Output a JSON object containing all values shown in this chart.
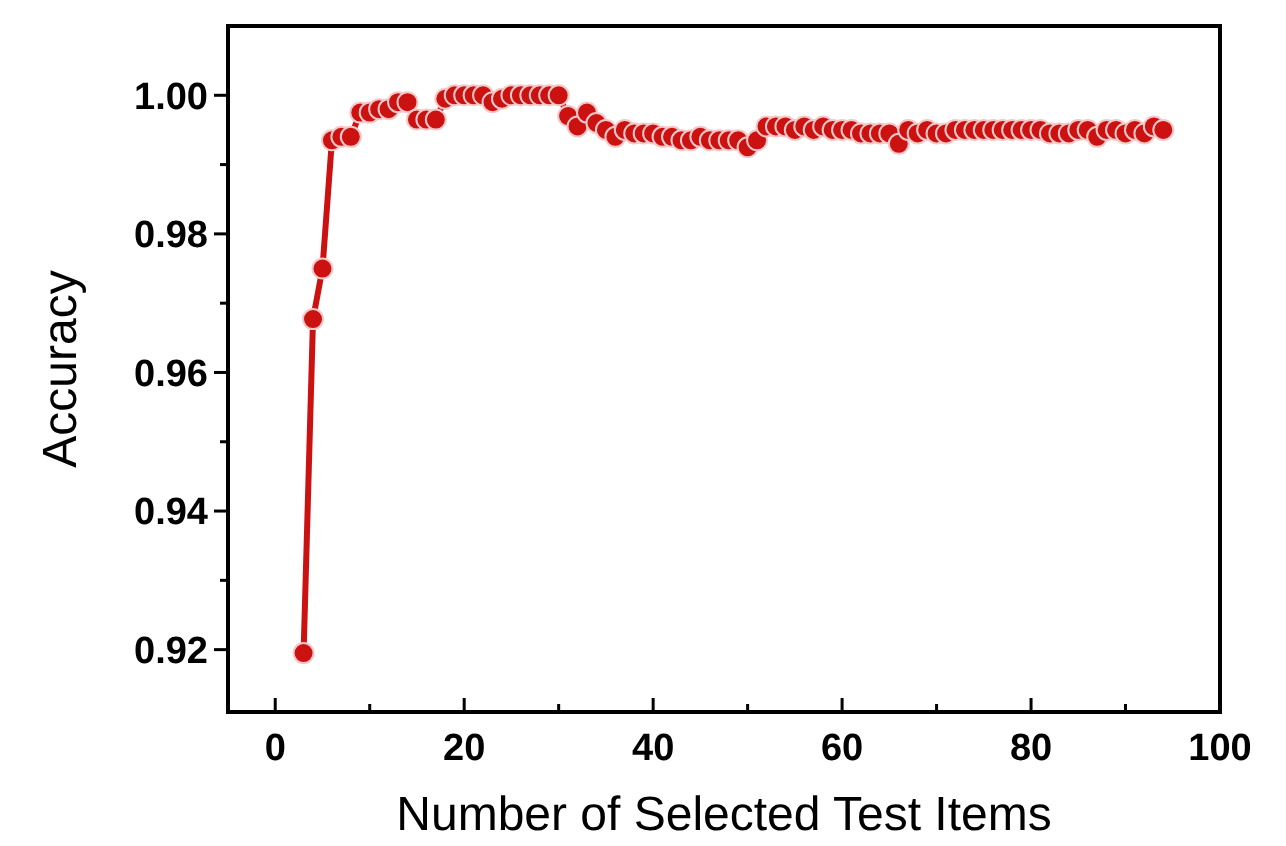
{
  "chart_data": {
    "type": "line",
    "xlabel": "Number of Selected Test Items",
    "ylabel": "Accuracy",
    "x": [
      3,
      4,
      5,
      6,
      7,
      8,
      9,
      10,
      11,
      12,
      13,
      14,
      15,
      16,
      17,
      18,
      19,
      20,
      21,
      22,
      23,
      24,
      25,
      26,
      27,
      28,
      29,
      30,
      31,
      32,
      33,
      34,
      35,
      36,
      37,
      38,
      39,
      40,
      41,
      42,
      43,
      44,
      45,
      46,
      47,
      48,
      49,
      50,
      51,
      52,
      53,
      54,
      55,
      56,
      57,
      58,
      59,
      60,
      61,
      62,
      63,
      64,
      65,
      66,
      67,
      68,
      69,
      70,
      71,
      72,
      73,
      74,
      75,
      76,
      77,
      78,
      79,
      80,
      81,
      82,
      83,
      84,
      85,
      86,
      87,
      88,
      89,
      90,
      91,
      92,
      93,
      94
    ],
    "series": [
      {
        "color": "#cc1111",
        "values": [
          0.9195,
          0.9677,
          0.975,
          0.9935,
          0.994,
          0.994,
          0.9975,
          0.9975,
          0.998,
          0.998,
          0.999,
          0.999,
          0.9965,
          0.9965,
          0.9965,
          0.9995,
          1.0,
          1.0,
          1.0,
          1.0,
          0.999,
          0.9995,
          1.0,
          1.0,
          1.0,
          1.0,
          1.0,
          1.0,
          0.997,
          0.9955,
          0.9975,
          0.996,
          0.995,
          0.994,
          0.995,
          0.9945,
          0.9945,
          0.9945,
          0.994,
          0.994,
          0.9935,
          0.9935,
          0.994,
          0.9935,
          0.9935,
          0.9935,
          0.9935,
          0.9925,
          0.9935,
          0.9955,
          0.9955,
          0.9955,
          0.995,
          0.9955,
          0.995,
          0.9955,
          0.995,
          0.995,
          0.995,
          0.9945,
          0.9945,
          0.9945,
          0.9945,
          0.993,
          0.995,
          0.9945,
          0.995,
          0.9945,
          0.9945,
          0.995,
          0.995,
          0.995,
          0.995,
          0.995,
          0.995,
          0.995,
          0.995,
          0.995,
          0.995,
          0.9945,
          0.9945,
          0.9945,
          0.995,
          0.995,
          0.994,
          0.995,
          0.995,
          0.9945,
          0.995,
          0.9945,
          0.9955,
          0.995
        ]
      }
    ],
    "xlim": [
      -5,
      100
    ],
    "ylim": [
      0.911,
      1.01
    ],
    "xticks": [
      0,
      {
        "value": 10,
        "label": null
      },
      20,
      {
        "value": 30,
        "label": null
      },
      40,
      {
        "value": 50,
        "label": null
      },
      60,
      {
        "value": 70,
        "label": null
      },
      80,
      {
        "value": 90,
        "label": null
      },
      100
    ],
    "yticks": [
      {
        "value": 0.92,
        "label": "0.92"
      },
      {
        "value": 0.93,
        "label": null
      },
      {
        "value": 0.94,
        "label": "0.94"
      },
      {
        "value": 0.95,
        "label": null
      },
      {
        "value": 0.96,
        "label": "0.96"
      },
      {
        "value": 0.97,
        "label": null
      },
      {
        "value": 0.98,
        "label": "0.98"
      },
      {
        "value": 0.99,
        "label": null
      },
      {
        "value": 1.0,
        "label": "1.00"
      }
    ],
    "grid": false,
    "marker": "circle",
    "line_style": "solid"
  }
}
